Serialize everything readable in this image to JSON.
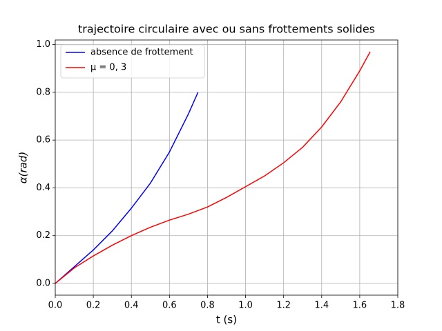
{
  "chart_data": {
    "type": "line",
    "title": "trajectoire circulaire avec ou sans frottements solides",
    "x_label": "t (s)",
    "y_label": "α(rad)",
    "series": [
      {
        "name": "absence de frottement",
        "color": "#0000ff",
        "x": [
          0,
          0.1,
          0.2,
          0.3,
          0.4,
          0.5,
          0.6,
          0.7,
          0.75
        ],
        "values": [
          0,
          0.07,
          0.14,
          0.22,
          0.315,
          0.42,
          0.55,
          0.71,
          0.8
        ]
      },
      {
        "name": "μ = 0, 3",
        "color": "#ff0000",
        "x": [
          0,
          0.1,
          0.2,
          0.3,
          0.4,
          0.5,
          0.6,
          0.7,
          0.8,
          0.9,
          1.0,
          1.1,
          1.2,
          1.3,
          1.4,
          1.5,
          1.6,
          1.655
        ],
        "values": [
          0,
          0.065,
          0.115,
          0.16,
          0.2,
          0.235,
          0.265,
          0.29,
          0.32,
          0.36,
          0.405,
          0.45,
          0.505,
          0.57,
          0.655,
          0.76,
          0.89,
          0.97
        ]
      }
    ],
    "xlim": [
      0,
      1.8
    ],
    "xticks": [
      {
        "value": 0,
        "label": "0.0"
      },
      0.2,
      0.4,
      0.6,
      0.8,
      {
        "value": 1,
        "label": "1.0"
      },
      1.2,
      1.4,
      1.6,
      1.8
    ],
    "ylim": [
      -0.049,
      1.019
    ],
    "yticks": [
      {
        "value": 0,
        "label": "0.0"
      },
      0.2,
      0.4,
      0.6,
      0.8,
      {
        "value": 1,
        "label": "1.0"
      }
    ],
    "grid": true,
    "legend": "upper-left"
  }
}
